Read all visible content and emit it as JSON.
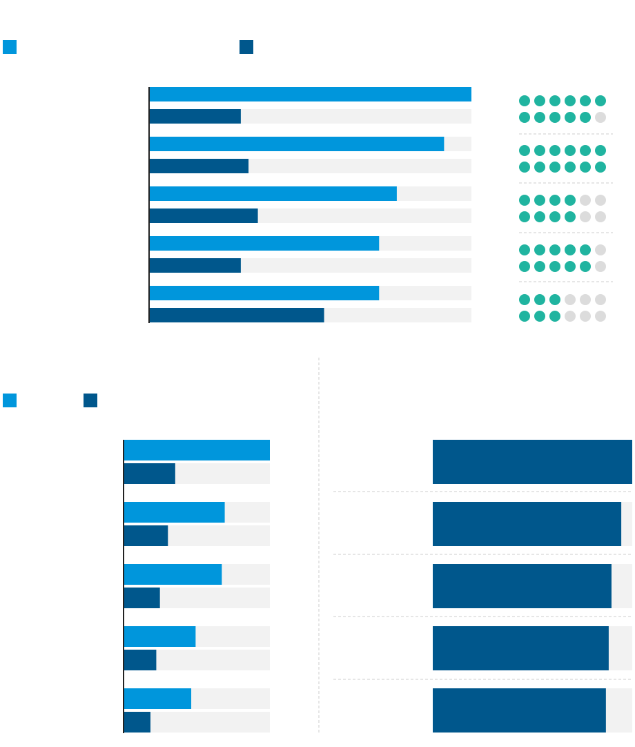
{
  "colors": {
    "series_a": "#0096dc",
    "series_b": "#00578c",
    "track": "#f2f2f2",
    "axis": "#222222",
    "dot_on": "#20b4a0",
    "dot_off": "#dcdcdc",
    "divider": "#cccccc"
  },
  "chart_data": [
    {
      "type": "bar",
      "orientation": "horizontal",
      "categories": [
        "",
        "",
        "",
        "",
        ""
      ],
      "series": [
        {
          "values": [
            1.0,
            0.915,
            0.768,
            0.713,
            0.713
          ]
        },
        {
          "values": [
            0.283,
            0.307,
            0.336,
            0.283,
            0.542
          ]
        }
      ],
      "xlim": [
        0,
        1
      ],
      "grid": false,
      "legend": "top-left"
    },
    {
      "type": "dot-rating",
      "max": 6,
      "rows": [
        [
          6,
          5
        ],
        [
          6,
          6
        ],
        [
          4,
          4
        ],
        [
          5,
          5
        ],
        [
          3,
          3
        ]
      ]
    },
    {
      "type": "bar",
      "orientation": "horizontal",
      "categories": [
        "",
        "",
        "",
        "",
        ""
      ],
      "series": [
        {
          "values": [
            1.0,
            0.69,
            0.67,
            0.49,
            0.46
          ]
        },
        {
          "values": [
            0.35,
            0.3,
            0.245,
            0.22,
            0.18
          ]
        }
      ],
      "xlim": [
        0,
        1
      ],
      "grid": false,
      "legend": "top-left"
    },
    {
      "type": "bar",
      "orientation": "horizontal",
      "categories": [
        "",
        "",
        "",
        "",
        ""
      ],
      "values": [
        1.0,
        0.945,
        0.896,
        0.882,
        0.868
      ],
      "xlim": [
        0,
        1
      ],
      "grid": false
    }
  ]
}
